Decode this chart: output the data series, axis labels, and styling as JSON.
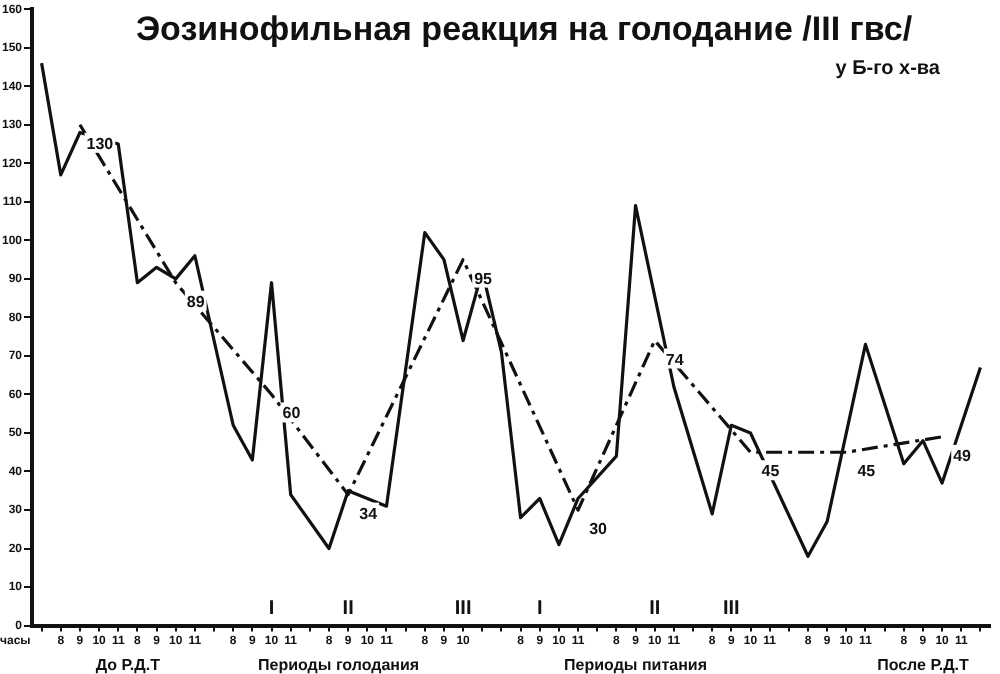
{
  "chart_data": {
    "type": "line",
    "title": "Эозинофильная реакция на голодание /III гвс/",
    "subtitle": "у Б-го х-ва",
    "xlabel": "часы",
    "categories": [
      null,
      "8",
      "9",
      "10",
      "11",
      "8",
      "9",
      "10",
      "11",
      null,
      "8",
      "9",
      "10",
      "11",
      null,
      "8",
      "9",
      "10",
      "11",
      null,
      "8",
      "9",
      "10",
      null,
      null,
      "8",
      "9",
      "10",
      "11",
      null,
      "8",
      "9",
      "10",
      "11",
      null,
      "8",
      "9",
      "10",
      "11",
      null,
      "8",
      "9",
      "10",
      "11",
      null,
      "8",
      "9",
      "10",
      "11",
      null
    ],
    "series": [
      {
        "color": "#111111",
        "line_style": "solid",
        "values": [
          146,
          117,
          128,
          null,
          125,
          89,
          93,
          90,
          96,
          null,
          52,
          43,
          89,
          34,
          null,
          20,
          35,
          null,
          31,
          null,
          102,
          95,
          74,
          92,
          71,
          28,
          33,
          21,
          33,
          null,
          44,
          109,
          null,
          62,
          null,
          29,
          52,
          50,
          null,
          null,
          18,
          27,
          null,
          73,
          null,
          42,
          48,
          37,
          null,
          67
        ]
      },
      {
        "color": "#111111",
        "line_style": "dashed",
        "values": [
          null,
          null,
          130,
          null,
          null,
          null,
          null,
          89,
          null,
          null,
          null,
          null,
          60,
          null,
          null,
          null,
          34,
          null,
          null,
          null,
          null,
          null,
          95,
          null,
          null,
          null,
          null,
          null,
          30,
          null,
          null,
          null,
          74,
          null,
          null,
          null,
          null,
          45,
          null,
          null,
          null,
          null,
          45,
          null,
          null,
          null,
          null,
          49,
          null,
          null
        ],
        "value_labels": [
          null,
          null,
          "130",
          null,
          null,
          null,
          null,
          "89",
          null,
          null,
          null,
          null,
          "60",
          null,
          null,
          null,
          "34",
          null,
          null,
          null,
          null,
          null,
          "95",
          null,
          null,
          null,
          null,
          null,
          "30",
          null,
          null,
          null,
          "74",
          null,
          null,
          null,
          null,
          "45",
          null,
          null,
          null,
          null,
          "45",
          null,
          null,
          null,
          null,
          "49",
          null,
          null
        ]
      }
    ],
    "ylim": [
      0,
      160
    ],
    "yticks": [
      0,
      10,
      20,
      30,
      40,
      50,
      60,
      70,
      80,
      90,
      100,
      110,
      120,
      130,
      140,
      150,
      160
    ],
    "grid": false,
    "legend": false,
    "marker": "none",
    "annotations": [
      "I",
      "II",
      "III",
      "I",
      "II",
      "III",
      "До Р.Д.Т",
      "Периоды голодания",
      "Периоды питания",
      "После Р.Д.Т"
    ]
  }
}
